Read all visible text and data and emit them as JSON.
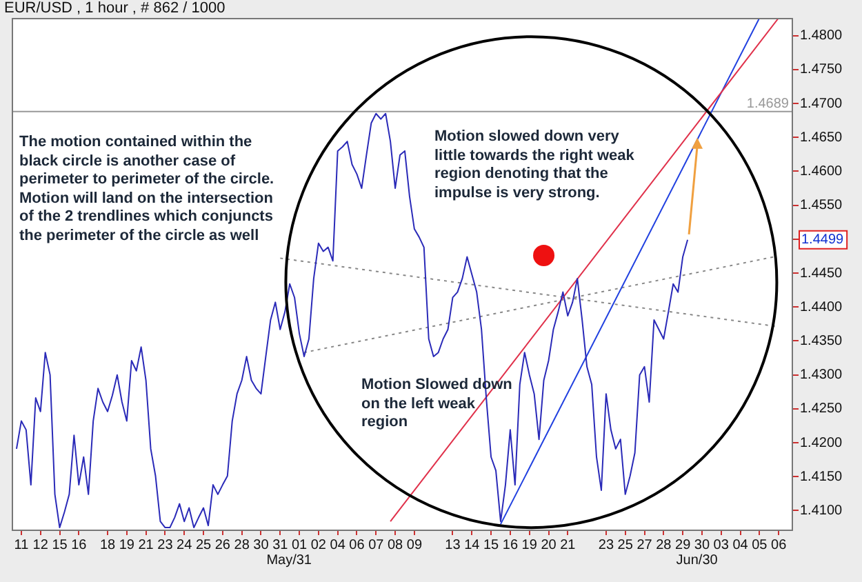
{
  "chart_data": {
    "type": "line",
    "title": "EUR/USD , 1 hour , # 862 / 1000",
    "categories": [
      null,
      null,
      "11",
      null,
      null,
      null,
      "12",
      null,
      null,
      null,
      "15",
      null,
      null,
      null,
      "16",
      null,
      null,
      null,
      null,
      null,
      "18",
      null,
      null,
      null,
      "19",
      null,
      null,
      null,
      "21",
      null,
      null,
      null,
      "23",
      null,
      null,
      null,
      "24",
      null,
      null,
      null,
      "25",
      null,
      null,
      null,
      "26",
      null,
      null,
      null,
      "28",
      null,
      null,
      null,
      "30",
      null,
      null,
      null,
      "31",
      null,
      null,
      null,
      "01",
      null,
      null,
      null,
      "02",
      null,
      null,
      null,
      "04",
      null,
      null,
      null,
      "06",
      null,
      null,
      null,
      "07",
      null,
      null,
      null,
      "08",
      null,
      null,
      null,
      "09",
      null,
      null,
      null,
      null,
      null,
      null,
      null,
      "13",
      null,
      null,
      null,
      "14",
      null,
      null,
      null,
      "15",
      null,
      null,
      null,
      "16",
      null,
      null,
      null,
      "19",
      null,
      null,
      null,
      "20",
      null,
      null,
      null,
      "21",
      null,
      null,
      null,
      null,
      null,
      null,
      null,
      "23",
      null,
      null,
      null,
      "25",
      null,
      null,
      null,
      "27",
      null,
      null,
      null,
      "28",
      null,
      null,
      null,
      "29",
      null,
      null,
      null,
      "30",
      null,
      null,
      null,
      "03",
      null,
      null,
      null,
      "04",
      null,
      null,
      null,
      "05",
      null,
      null,
      null,
      "06",
      null,
      null,
      null
    ],
    "ylim": [
      1.407,
      1.4826
    ],
    "yticks": [
      {
        "value": 1.41,
        "label": "1.4100"
      },
      {
        "value": 1.415,
        "label": "1.4150"
      },
      {
        "value": 1.42,
        "label": "1.4200"
      },
      {
        "value": 1.425,
        "label": "1.4250"
      },
      {
        "value": 1.43,
        "label": "1.4300"
      },
      {
        "value": 1.435,
        "label": "1.4350"
      },
      {
        "value": 1.44,
        "label": "1.4400"
      },
      {
        "value": 1.445,
        "label": "1.4450"
      },
      {
        "value": 1.45,
        "label": null
      },
      {
        "value": 1.455,
        "label": "1.4550"
      },
      {
        "value": 1.46,
        "label": "1.4600"
      },
      {
        "value": 1.465,
        "label": "1.4650"
      },
      {
        "value": 1.47,
        "label": "1.4700"
      },
      {
        "value": 1.475,
        "label": "1.4750"
      },
      {
        "value": 1.48,
        "label": "1.4800"
      }
    ],
    "grid": false,
    "legend": false,
    "series": [
      {
        "color": "#2a2ab8",
        "values": [
          null,
          1.4191,
          1.4232,
          1.4219,
          1.4138,
          1.4266,
          1.4246,
          1.4333,
          1.43,
          1.4124,
          1.4075,
          1.4098,
          1.4124,
          1.4211,
          1.4138,
          1.4179,
          1.4124,
          1.4232,
          1.428,
          1.426,
          1.4246,
          1.427,
          1.43,
          1.426,
          1.4232,
          1.4321,
          1.4306,
          1.4341,
          1.4292,
          1.4191,
          1.4151,
          1.4084,
          1.4075,
          1.4075,
          1.409,
          1.411,
          1.4084,
          1.4104,
          1.4075,
          1.409,
          1.4104,
          1.4078,
          1.4138,
          1.4124,
          1.4138,
          1.4151,
          1.4232,
          1.4272,
          1.4292,
          1.4327,
          1.4292,
          1.428,
          1.4272,
          1.4327,
          1.4381,
          1.4407,
          1.4367,
          1.4393,
          1.4434,
          1.4414,
          1.4361,
          1.4327,
          1.4353,
          1.4442,
          1.4494,
          1.4482,
          1.4488,
          1.4468,
          1.463,
          1.4636,
          1.4644,
          1.461,
          1.4596,
          1.4575,
          1.4624,
          1.4671,
          1.4685,
          1.4677,
          1.4685,
          1.4644,
          1.4575,
          1.4624,
          1.463,
          1.4563,
          1.4515,
          1.4503,
          1.4488,
          1.4353,
          1.4327,
          1.4333,
          1.4353,
          1.4367,
          1.4414,
          1.4422,
          1.4442,
          1.4474,
          1.4448,
          1.4422,
          1.4367,
          1.4266,
          1.4179,
          1.4159,
          1.4084,
          1.4138,
          1.4219,
          1.4138,
          1.4286,
          1.4333,
          1.43,
          1.4272,
          1.4205,
          1.4292,
          1.4321,
          1.4367,
          1.4393,
          1.4422,
          1.4387,
          1.4407,
          1.4442,
          1.4381,
          1.4312,
          1.4286,
          1.4179,
          1.413,
          1.4272,
          1.4219,
          1.4191,
          1.4205,
          1.4124,
          1.4151,
          1.4185,
          1.43,
          1.4312,
          1.426,
          1.4381,
          1.4367,
          1.4353,
          1.4393,
          1.4434,
          1.4422,
          1.4474,
          1.4499,
          null,
          null,
          null,
          null,
          null,
          null,
          null,
          null,
          null,
          null,
          null,
          null,
          null,
          null,
          null,
          null,
          null,
          null,
          null,
          null,
          null,
          null
        ]
      },
      {
        "type": "line",
        "color": "#e0304a",
        "values": [
          null,
          null,
          null,
          null,
          null,
          null,
          null,
          null,
          null,
          null,
          null,
          null,
          null,
          null,
          null,
          null,
          null,
          null,
          null,
          null,
          null,
          null,
          null,
          null,
          null,
          null,
          null,
          null,
          null,
          null,
          null,
          null,
          null,
          null,
          null,
          null,
          null,
          null,
          null,
          null,
          null,
          null,
          null,
          null,
          null,
          null,
          null,
          null,
          null,
          null,
          null,
          null,
          null,
          null,
          null,
          null,
          null,
          null,
          null,
          null,
          null,
          null,
          null,
          null,
          null,
          null,
          null,
          null,
          null,
          null,
          null,
          null,
          null,
          null,
          null,
          null,
          null,
          null,
          null,
          1.4084,
          null,
          null,
          null,
          null,
          null,
          null,
          null,
          null,
          null,
          null,
          null,
          null,
          null,
          null,
          null,
          null,
          null,
          null,
          null,
          null,
          null,
          null,
          null,
          null,
          null,
          null,
          null,
          null,
          null,
          null,
          null,
          null,
          null,
          null,
          null,
          null,
          null,
          null,
          null,
          null,
          null,
          null,
          null,
          null,
          null,
          null,
          null,
          null,
          null,
          null,
          null,
          null,
          null,
          null,
          null,
          null,
          null,
          null,
          null,
          null,
          null,
          null,
          null,
          null,
          null,
          null,
          null,
          null,
          null,
          null,
          null,
          null,
          null,
          null,
          null,
          null,
          null,
          null,
          null,
          null,
          1.4826,
          null,
          null,
          null
        ]
      },
      {
        "type": "line",
        "color": "#2040e0",
        "values": [
          null,
          null,
          null,
          null,
          null,
          null,
          null,
          null,
          null,
          null,
          null,
          null,
          null,
          null,
          null,
          null,
          null,
          null,
          null,
          null,
          null,
          null,
          null,
          null,
          null,
          null,
          null,
          null,
          null,
          null,
          null,
          null,
          null,
          null,
          null,
          null,
          null,
          null,
          null,
          null,
          null,
          null,
          null,
          null,
          null,
          null,
          null,
          null,
          null,
          null,
          null,
          null,
          null,
          null,
          null,
          null,
          null,
          null,
          null,
          null,
          null,
          null,
          null,
          null,
          null,
          null,
          null,
          null,
          null,
          null,
          null,
          null,
          null,
          null,
          null,
          null,
          null,
          null,
          null,
          null,
          null,
          null,
          null,
          null,
          null,
          null,
          null,
          null,
          null,
          null,
          null,
          null,
          null,
          null,
          null,
          null,
          null,
          null,
          null,
          null,
          null,
          null,
          1.408,
          null,
          null,
          null,
          null,
          null,
          null,
          null,
          null,
          null,
          null,
          null,
          null,
          null,
          null,
          null,
          null,
          null,
          null,
          null,
          null,
          null,
          null,
          null,
          null,
          null,
          null,
          null,
          null,
          null,
          null,
          null,
          null,
          null,
          null,
          null,
          null,
          null,
          null,
          null,
          null,
          null,
          null,
          null,
          null,
          null,
          null,
          null,
          null,
          null,
          null,
          null,
          null,
          null,
          1.4826,
          null,
          null,
          null,
          null,
          null,
          null,
          null
        ]
      },
      {
        "type": "line",
        "color": "#888888",
        "line_style": "dotted",
        "values": [
          null,
          null,
          null,
          null,
          null,
          null,
          null,
          null,
          null,
          null,
          null,
          null,
          null,
          null,
          null,
          null,
          null,
          null,
          null,
          null,
          null,
          null,
          null,
          null,
          null,
          null,
          null,
          null,
          null,
          null,
          null,
          null,
          null,
          null,
          null,
          null,
          null,
          null,
          null,
          null,
          null,
          null,
          null,
          null,
          null,
          null,
          null,
          null,
          null,
          null,
          null,
          null,
          null,
          null,
          null,
          null,
          1.4472,
          null,
          null,
          null,
          null,
          null,
          null,
          null,
          null,
          null,
          null,
          null,
          null,
          null,
          null,
          null,
          null,
          null,
          null,
          null,
          null,
          null,
          null,
          null,
          null,
          null,
          null,
          null,
          null,
          null,
          null,
          null,
          null,
          null,
          null,
          null,
          null,
          null,
          null,
          null,
          null,
          null,
          null,
          null,
          null,
          null,
          null,
          null,
          null,
          null,
          null,
          null,
          null,
          null,
          null,
          null,
          null,
          null,
          null,
          null,
          null,
          null,
          null,
          null,
          null,
          null,
          null,
          null,
          null,
          null,
          null,
          null,
          null,
          null,
          null,
          null,
          null,
          null,
          null,
          null,
          null,
          null,
          null,
          null,
          null,
          null,
          null,
          null,
          null,
          null,
          null,
          null,
          null,
          null,
          null,
          null,
          null,
          null,
          null,
          null,
          null,
          null,
          null,
          null,
          1.4371,
          null,
          null,
          null
        ]
      },
      {
        "type": "line",
        "color": "#888888",
        "line_style": "dotted",
        "values": [
          null,
          null,
          null,
          null,
          null,
          null,
          null,
          null,
          null,
          null,
          null,
          null,
          null,
          null,
          null,
          null,
          null,
          null,
          null,
          null,
          null,
          null,
          null,
          null,
          null,
          null,
          null,
          null,
          null,
          null,
          null,
          null,
          null,
          null,
          null,
          null,
          null,
          null,
          null,
          null,
          null,
          null,
          null,
          null,
          null,
          null,
          null,
          null,
          null,
          null,
          null,
          null,
          null,
          null,
          null,
          null,
          null,
          null,
          null,
          null,
          null,
          1.4333,
          null,
          null,
          null,
          null,
          null,
          null,
          null,
          null,
          null,
          null,
          null,
          null,
          null,
          null,
          null,
          null,
          null,
          null,
          null,
          null,
          null,
          null,
          null,
          null,
          null,
          null,
          null,
          null,
          null,
          null,
          null,
          null,
          null,
          null,
          null,
          null,
          null,
          null,
          null,
          null,
          null,
          null,
          null,
          null,
          null,
          null,
          null,
          null,
          null,
          null,
          null,
          null,
          null,
          null,
          null,
          null,
          null,
          null,
          null,
          null,
          null,
          null,
          null,
          null,
          null,
          null,
          null,
          null,
          null,
          null,
          null,
          null,
          null,
          null,
          null,
          null,
          null,
          null,
          null,
          null,
          null,
          null,
          null,
          null,
          null,
          null,
          null,
          null,
          null,
          null,
          null,
          null,
          null,
          null,
          null,
          null,
          null,
          1.4474,
          null,
          null,
          null,
          null
        ]
      },
      {
        "type": "scatter",
        "color": "#ee1111",
        "marker": "circle",
        "values": [
          null,
          null,
          null,
          null,
          null,
          null,
          null,
          null,
          null,
          null,
          null,
          null,
          null,
          null,
          null,
          null,
          null,
          null,
          null,
          null,
          null,
          null,
          null,
          null,
          null,
          null,
          null,
          null,
          null,
          null,
          null,
          null,
          null,
          null,
          null,
          null,
          null,
          null,
          null,
          null,
          null,
          null,
          null,
          null,
          null,
          null,
          null,
          null,
          null,
          null,
          null,
          null,
          null,
          null,
          null,
          null,
          null,
          null,
          null,
          null,
          null,
          null,
          null,
          null,
          null,
          null,
          null,
          null,
          null,
          null,
          null,
          null,
          null,
          null,
          null,
          null,
          null,
          null,
          null,
          null,
          null,
          null,
          null,
          null,
          null,
          null,
          null,
          null,
          null,
          null,
          null,
          null,
          null,
          null,
          null,
          null,
          null,
          null,
          null,
          null,
          null,
          null,
          null,
          null,
          null,
          null,
          null,
          null,
          null,
          null,
          null,
          1.4476,
          null,
          null,
          null,
          null,
          null,
          null,
          null,
          null,
          null,
          null,
          null,
          null,
          null,
          null,
          null,
          null,
          null,
          null,
          null,
          null,
          null,
          null,
          null,
          null,
          null,
          null,
          null,
          null,
          null,
          null,
          null,
          null,
          null,
          null,
          null,
          null,
          null,
          null,
          null,
          null,
          null,
          null,
          null,
          null,
          null,
          null,
          null,
          null,
          null,
          null,
          null,
          null
        ]
      }
    ],
    "ref_lines": [
      {
        "axis": "y",
        "value": 1.4689,
        "label": "1.4689",
        "color": "#999999"
      }
    ],
    "annotations": [
      "The motion contained within the black circle is another case of perimeter to perimeter of the circle.  Motion will land on the intersection of the 2 trendlines which conjuncts the perimeter of the circle as well",
      "Motion slowed down very little towards the right weak region denoting that the impulse is very strong.",
      "Motion Slowed down on the left weak region",
      "May/31",
      "Jun/30",
      "1.4499"
    ]
  }
}
